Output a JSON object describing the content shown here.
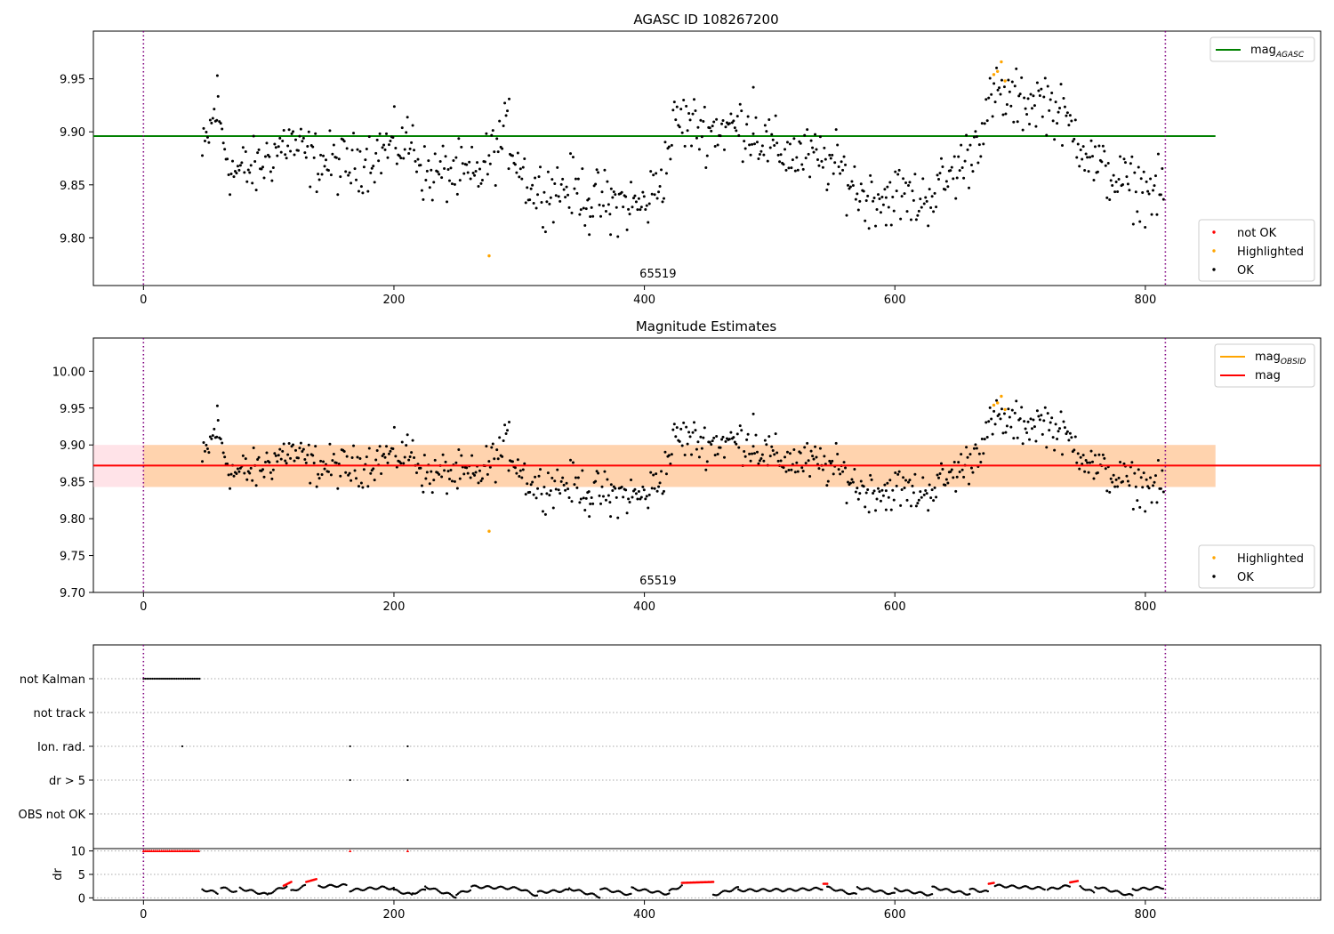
{
  "chart_data": [
    {
      "type": "scatter",
      "title": "AGASC ID 108267200",
      "xlim": [
        -40,
        940
      ],
      "ylim": [
        9.755,
        9.995
      ],
      "xticks": [
        0,
        200,
        400,
        600,
        800
      ],
      "yticks": [
        9.8,
        9.85,
        9.9,
        9.95
      ],
      "ytick_labels": [
        "9.80",
        "9.85",
        "9.90",
        "9.95"
      ],
      "grid": false,
      "annotation": {
        "text": "65519",
        "x": 408
      },
      "vlines": [
        0,
        816
      ],
      "hline": {
        "name": "mag_AGASC",
        "y": 9.896,
        "color": "#008000",
        "x_range": [
          -40,
          856
        ]
      },
      "legend_upper": {
        "position": "top-right",
        "entries": [
          {
            "label": "mag",
            "sub": "AGASC",
            "color": "#008000"
          }
        ]
      },
      "legend_lower": {
        "position": "bottom-right",
        "entries": [
          {
            "label": "not OK",
            "color": "#ff0000"
          },
          {
            "label": "Highlighted",
            "color": "#ffa500"
          },
          {
            "label": "OK",
            "color": "#000000"
          }
        ]
      },
      "highlighted_points": [
        [
          276,
          9.783
        ],
        [
          679,
          9.954
        ],
        [
          682,
          9.957
        ],
        [
          685,
          9.966
        ],
        [
          688,
          9.948
        ]
      ],
      "ok_points_x_range": [
        47,
        815
      ],
      "trend": [
        [
          47,
          9.875
        ],
        [
          58,
          9.922
        ],
        [
          70,
          9.862
        ],
        [
          90,
          9.865
        ],
        [
          115,
          9.892
        ],
        [
          135,
          9.873
        ],
        [
          165,
          9.868
        ],
        [
          195,
          9.885
        ],
        [
          215,
          9.89
        ],
        [
          225,
          9.858
        ],
        [
          245,
          9.862
        ],
        [
          265,
          9.856
        ],
        [
          290,
          9.898
        ],
        [
          310,
          9.844
        ],
        [
          340,
          9.848
        ],
        [
          360,
          9.836
        ],
        [
          380,
          9.833
        ],
        [
          400,
          9.83
        ],
        [
          415,
          9.86
        ],
        [
          425,
          9.912
        ],
        [
          450,
          9.902
        ],
        [
          480,
          9.906
        ],
        [
          505,
          9.882
        ],
        [
          535,
          9.875
        ],
        [
          555,
          9.867
        ],
        [
          575,
          9.838
        ],
        [
          600,
          9.842
        ],
        [
          620,
          9.834
        ],
        [
          640,
          9.852
        ],
        [
          660,
          9.878
        ],
        [
          680,
          9.935
        ],
        [
          700,
          9.927
        ],
        [
          720,
          9.932
        ],
        [
          745,
          9.898
        ],
        [
          760,
          9.868
        ],
        [
          790,
          9.847
        ],
        [
          815,
          9.842
        ]
      ]
    },
    {
      "type": "scatter",
      "title": "Magnitude Estimates",
      "xlim": [
        -40,
        940
      ],
      "ylim": [
        9.7,
        10.045
      ],
      "xticks": [
        0,
        200,
        400,
        600,
        800
      ],
      "yticks": [
        9.7,
        9.75,
        9.8,
        9.85,
        9.9,
        9.95,
        10.0
      ],
      "ytick_labels": [
        "9.70",
        "9.75",
        "9.80",
        "9.85",
        "9.90",
        "9.95",
        "10.00"
      ],
      "grid": false,
      "annotation": {
        "text": "65519",
        "x": 408
      },
      "vlines": [
        0,
        816
      ],
      "mag_line": {
        "name": "mag",
        "y": 9.872,
        "color": "#ff0000"
      },
      "mag_obsid_band": {
        "y_range": [
          9.843,
          9.9
        ],
        "x_range": [
          -40,
          856
        ]
      },
      "legend_upper": {
        "position": "top-right",
        "entries": [
          {
            "label": "mag",
            "sub": "OBSID",
            "color": "#ffa500"
          },
          {
            "label": "mag",
            "sub": "",
            "color": "#ff0000"
          }
        ]
      },
      "legend_lower": {
        "position": "bottom-right",
        "entries": [
          {
            "label": "Highlighted",
            "color": "#ffa500"
          },
          {
            "label": "OK",
            "color": "#000000"
          }
        ]
      },
      "highlighted_points": [
        [
          276,
          9.783
        ],
        [
          679,
          9.954
        ],
        [
          682,
          9.957
        ],
        [
          685,
          9.966
        ],
        [
          688,
          9.948
        ]
      ]
    },
    {
      "type": "scatter",
      "title": "",
      "xlim": [
        -40,
        940
      ],
      "categories": [
        "not Kalman",
        "not track",
        "Ion. rad.",
        "dr > 5",
        "OBS not OK"
      ],
      "grid": true,
      "vlines": [
        0,
        816
      ],
      "flags": {
        "not Kalman": {
          "x_range": [
            0,
            45
          ]
        },
        "Ion. rad.": {
          "x": [
            31,
            165,
            211
          ]
        },
        "dr > 5": {
          "x": [
            165,
            211
          ]
        }
      }
    },
    {
      "type": "scatter",
      "title": "",
      "ylabel": "dr",
      "xlim": [
        -40,
        940
      ],
      "ylim": [
        -0.5,
        10.5
      ],
      "xticks": [
        0,
        200,
        400,
        600,
        800
      ],
      "yticks": [
        0,
        5,
        10
      ],
      "grid": true,
      "vlines": [
        0,
        816
      ],
      "red_points_at_10": {
        "x_range": [
          0,
          45
        ],
        "extra_x": [
          165,
          211
        ]
      },
      "red_segments": [
        [
          [
            112,
            2.6
          ],
          [
            118,
            3.4
          ]
        ],
        [
          [
            130,
            3.4
          ],
          [
            138,
            4.0
          ]
        ],
        [
          [
            430,
            3.2
          ],
          [
            455,
            3.4
          ]
        ],
        [
          [
            543,
            3.0
          ],
          [
            546,
            3.0
          ]
        ],
        [
          [
            675,
            3.0
          ],
          [
            679,
            3.2
          ]
        ],
        [
          [
            740,
            3.3
          ],
          [
            746,
            3.6
          ]
        ]
      ]
    }
  ]
}
